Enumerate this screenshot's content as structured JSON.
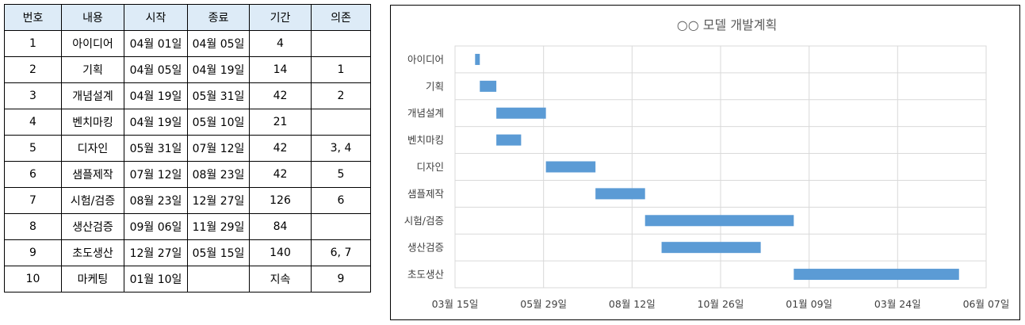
{
  "table": {
    "headers": [
      "번호",
      "내용",
      "시작",
      "종료",
      "기간",
      "의존"
    ],
    "rows": [
      [
        "1",
        "아이디어",
        "04월 01일",
        "04월 05일",
        "4",
        ""
      ],
      [
        "2",
        "기획",
        "04월 05일",
        "04월 19일",
        "14",
        "1"
      ],
      [
        "3",
        "개념설계",
        "04월 19일",
        "05월 31일",
        "42",
        "2"
      ],
      [
        "4",
        "벤치마킹",
        "04월 19일",
        "05월 10일",
        "21",
        ""
      ],
      [
        "5",
        "디자인",
        "05월 31일",
        "07월 12일",
        "42",
        "3, 4"
      ],
      [
        "6",
        "샘플제작",
        "07월 12일",
        "08월 23일",
        "42",
        "5"
      ],
      [
        "7",
        "시험/검증",
        "08월 23일",
        "12월 27일",
        "126",
        "6"
      ],
      [
        "8",
        "생산검증",
        "09월 06일",
        "11월 29일",
        "84",
        ""
      ],
      [
        "9",
        "초도생산",
        "12월 27일",
        "05월 15일",
        "140",
        "6, 7"
      ],
      [
        "10",
        "마케팅",
        "01월 10일",
        "",
        "지속",
        "9"
      ]
    ]
  },
  "chart_data": {
    "type": "bar",
    "orientation": "horizontal-gantt",
    "title": "○○ 모델 개발계획",
    "categories": [
      "아이디어",
      "기획",
      "개념설계",
      "벤치마킹",
      "디자인",
      "샘플제작",
      "시험/검증",
      "생산검증",
      "초도생산"
    ],
    "start": [
      "04월 01일",
      "04월 05일",
      "04월 19일",
      "04월 19일",
      "05월 31일",
      "07월 12일",
      "08월 23일",
      "09월 06일",
      "12월 27일"
    ],
    "duration_days": [
      4,
      14,
      42,
      21,
      42,
      42,
      126,
      84,
      140
    ],
    "x_tick_labels": [
      "03월 15일",
      "05월 29일",
      "08월 12일",
      "10월 26일",
      "01월 09일",
      "03월 24일",
      "06월 07일"
    ],
    "x_tick_step_days": 75,
    "grid": true,
    "bar_color": "#5b9bd5",
    "grid_color": "#d9d9d9"
  }
}
